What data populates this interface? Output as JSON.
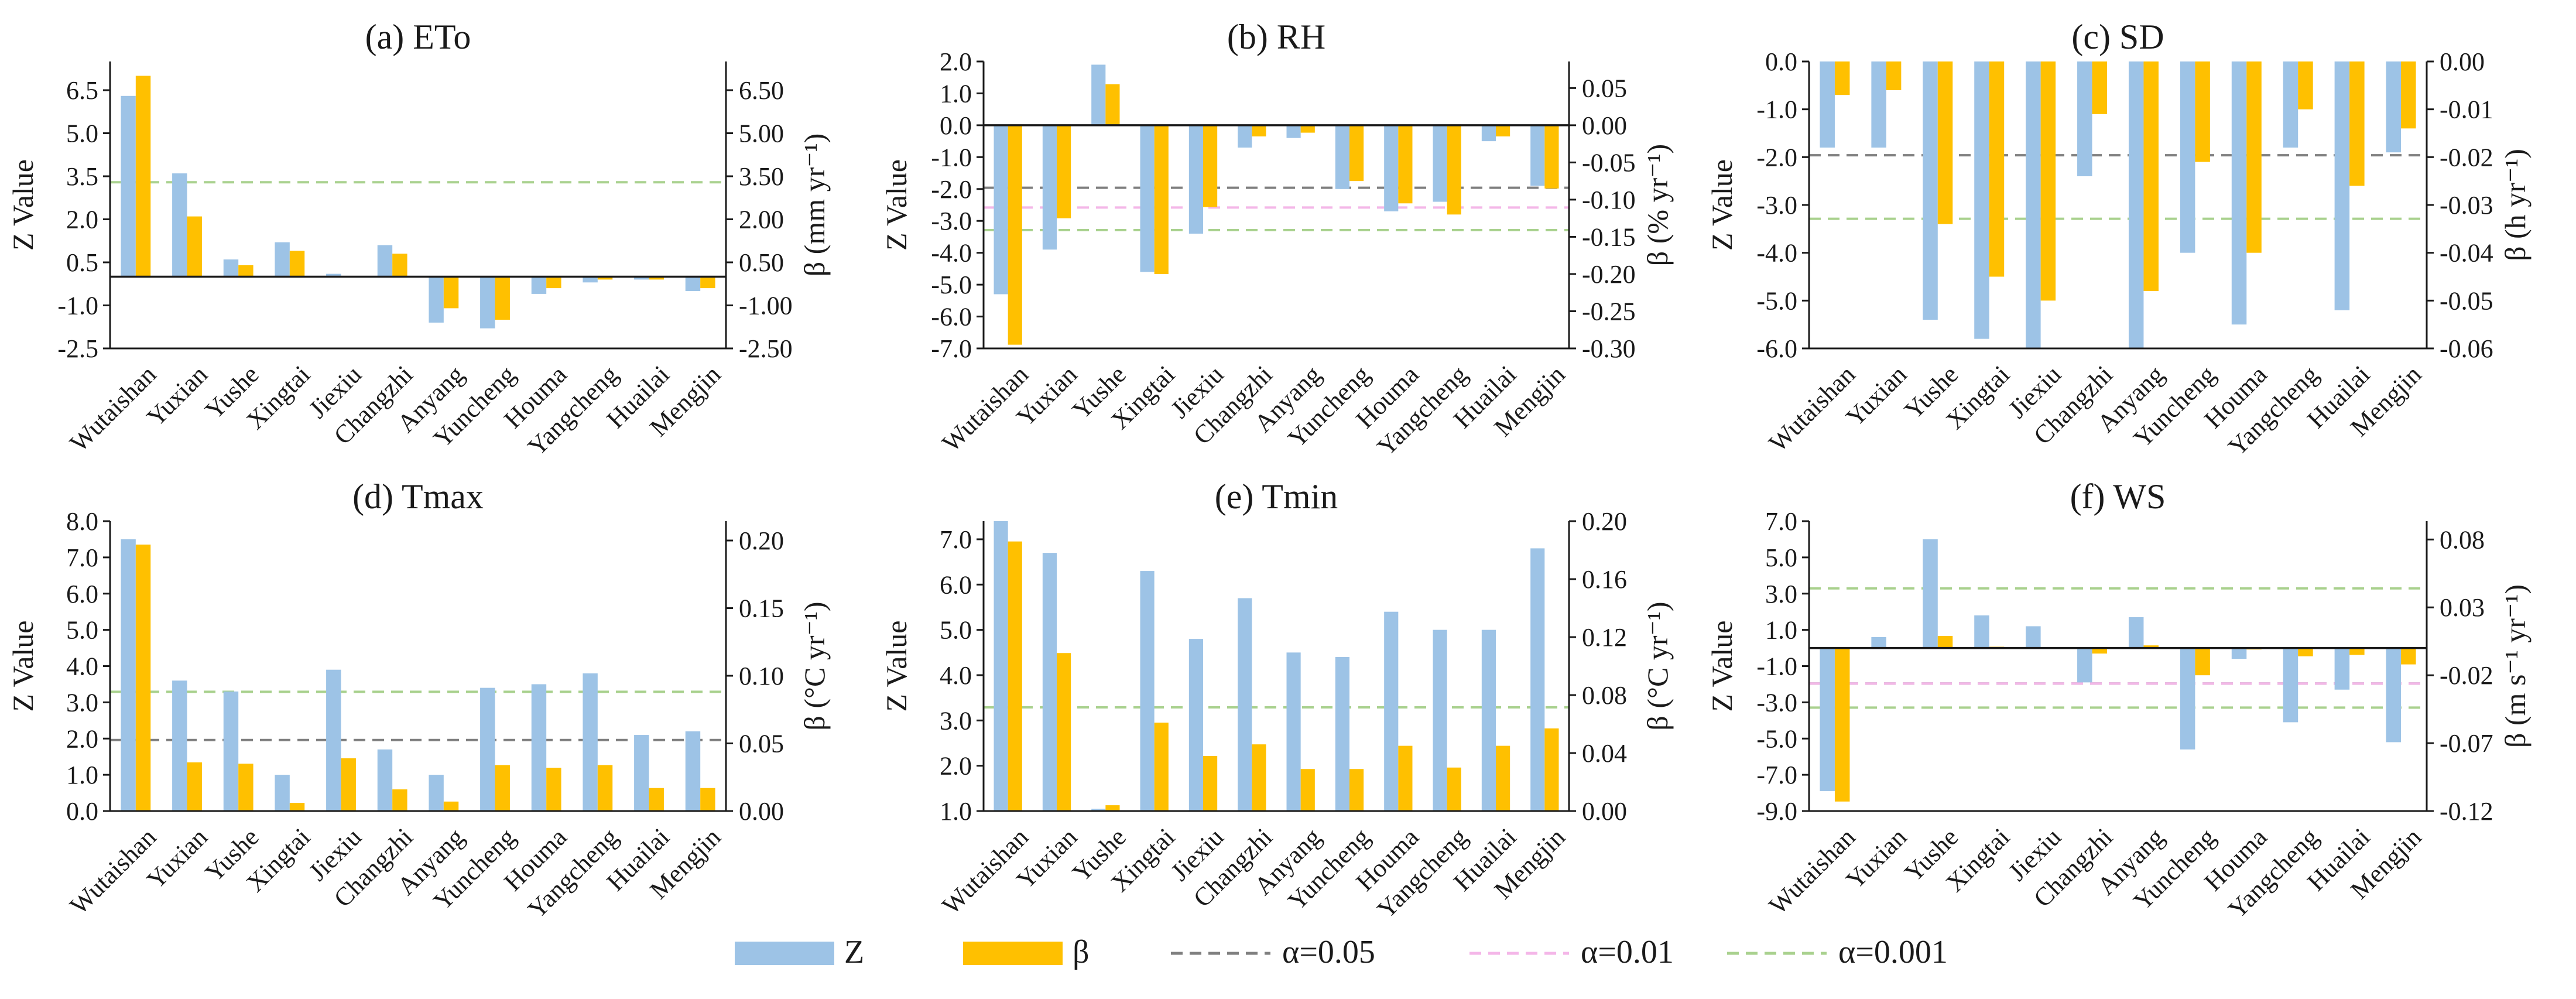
{
  "colors": {
    "z": "#9DC3E6",
    "beta": "#FFC000",
    "a05": "#7F7F7F",
    "a01": "#F4B6E8",
    "a001": "#A9D18E"
  },
  "legend": {
    "z": "Z",
    "beta": "β",
    "a05": "α=0.05",
    "a01": "α=0.01",
    "a001": "α=0.001"
  },
  "chart_data": [
    {
      "type": "bar",
      "title": "(a) ETo",
      "ylabel": "Z Value",
      "y2label": "β (mm yr⁻¹)",
      "categories": [
        "Wutaishan",
        "Yuxian",
        "Yushe",
        "Xingtai",
        "Jiexiu",
        "Changzhi",
        "Anyang",
        "Yuncheng",
        "Houma",
        "Yangcheng",
        "Huailai",
        "Mengjin"
      ],
      "series": [
        {
          "name": "Z",
          "axis": "left",
          "values": [
            6.3,
            3.6,
            0.6,
            1.2,
            0.1,
            1.1,
            -1.6,
            -1.8,
            -0.6,
            -0.2,
            -0.1,
            -0.5
          ]
        },
        {
          "name": "β",
          "axis": "right",
          "values": [
            7.0,
            2.1,
            0.4,
            0.9,
            0.0,
            0.8,
            -1.1,
            -1.5,
            -0.4,
            -0.1,
            -0.1,
            -0.4
          ]
        }
      ],
      "ylim": [
        -2.5,
        7.5
      ],
      "yticks": [
        -2.5,
        -1.0,
        0.5,
        2.0,
        3.5,
        5.0,
        6.5
      ],
      "ytick_labels": [
        "-2.5",
        "-1.0",
        "0.5",
        "2.0",
        "3.5",
        "5.0",
        "6.5"
      ],
      "y2lim": [
        -2.5,
        7.5
      ],
      "y2ticks": [
        -2.5,
        -1.0,
        0.5,
        2.0,
        3.5,
        5.0,
        6.5
      ],
      "y2tick_labels": [
        "-2.50",
        "-1.00",
        "0.50",
        "2.00",
        "3.50",
        "5.00",
        "6.50"
      ],
      "baseline": 0,
      "thresholds": [
        {
          "level": "a001",
          "value": 3.29
        }
      ]
    },
    {
      "type": "bar",
      "title": "(b) RH",
      "ylabel": "Z Value",
      "y2label": "β (% yr⁻¹)",
      "categories": [
        "Wutaishan",
        "Yuxian",
        "Yushe",
        "Xingtai",
        "Jiexiu",
        "Changzhi",
        "Anyang",
        "Yuncheng",
        "Houma",
        "Yangcheng",
        "Huailai",
        "Mengjin"
      ],
      "series": [
        {
          "name": "Z",
          "axis": "left",
          "values": [
            -5.3,
            -3.9,
            1.9,
            -4.6,
            -3.4,
            -0.7,
            -0.4,
            -2.0,
            -2.7,
            -2.4,
            -0.5,
            -1.9
          ]
        },
        {
          "name": "β",
          "axis": "right",
          "values": [
            -0.295,
            -0.125,
            0.055,
            -0.2,
            -0.11,
            -0.015,
            -0.01,
            -0.075,
            -0.105,
            -0.12,
            -0.015,
            -0.085
          ]
        }
      ],
      "ylim": [
        -7.0,
        2.0
      ],
      "yticks": [
        -7.0,
        -6.0,
        -5.0,
        -4.0,
        -3.0,
        -2.0,
        -1.0,
        0.0,
        1.0,
        2.0
      ],
      "ytick_labels": [
        "-7.0",
        "-6.0",
        "-5.0",
        "-4.0",
        "-3.0",
        "-2.0",
        "-1.0",
        "0.0",
        "1.0",
        "2.0"
      ],
      "y2lim": [
        -0.3,
        0.0857
      ],
      "y2ticks": [
        -0.3,
        -0.25,
        -0.2,
        -0.15,
        -0.1,
        -0.05,
        0.0,
        0.05
      ],
      "y2tick_labels": [
        "-0.30",
        "-0.25",
        "-0.20",
        "-0.15",
        "-0.10",
        "-0.05",
        "0.00",
        "0.05"
      ],
      "baseline": 0,
      "thresholds": [
        {
          "level": "a05",
          "value": -1.96
        },
        {
          "level": "a01",
          "value": -2.58
        },
        {
          "level": "a001",
          "value": -3.29
        }
      ]
    },
    {
      "type": "bar",
      "title": "(c) SD",
      "ylabel": "Z Value",
      "y2label": "β (h yr⁻¹)",
      "categories": [
        "Wutaishan",
        "Yuxian",
        "Yushe",
        "Xingtai",
        "Jiexiu",
        "Changzhi",
        "Anyang",
        "Yuncheng",
        "Houma",
        "Yangcheng",
        "Huailai",
        "Mengjin"
      ],
      "series": [
        {
          "name": "Z",
          "axis": "left",
          "values": [
            -1.8,
            -1.8,
            -5.4,
            -5.8,
            -6.0,
            -2.4,
            -6.0,
            -4.0,
            -5.5,
            -1.8,
            -5.2,
            -1.9
          ]
        },
        {
          "name": "β",
          "axis": "right",
          "values": [
            -0.007,
            -0.006,
            -0.034,
            -0.045,
            -0.05,
            -0.011,
            -0.048,
            -0.021,
            -0.04,
            -0.01,
            -0.026,
            -0.014
          ]
        }
      ],
      "ylim": [
        -6.0,
        0.0
      ],
      "yticks": [
        -6.0,
        -5.0,
        -4.0,
        -3.0,
        -2.0,
        -1.0,
        0.0
      ],
      "ytick_labels": [
        "-6.0",
        "-5.0",
        "-4.0",
        "-3.0",
        "-2.0",
        "-1.0",
        "0.0"
      ],
      "y2lim": [
        -0.06,
        0.0
      ],
      "y2ticks": [
        -0.06,
        -0.05,
        -0.04,
        -0.03,
        -0.02,
        -0.01,
        0.0
      ],
      "y2tick_labels": [
        "-0.06",
        "-0.05",
        "-0.04",
        "-0.03",
        "-0.02",
        "-0.01",
        "0.00"
      ],
      "baseline": 0,
      "thresholds": [
        {
          "level": "a05",
          "value": -1.96
        },
        {
          "level": "a001",
          "value": -3.29
        }
      ]
    },
    {
      "type": "bar",
      "title": "(d) Tmax",
      "ylabel": "Z Value",
      "y2label": "β (°C yr⁻¹)",
      "categories": [
        "Wutaishan",
        "Yuxian",
        "Yushe",
        "Xingtai",
        "Jiexiu",
        "Changzhi",
        "Anyang",
        "Yuncheng",
        "Houma",
        "Yangcheng",
        "Huailai",
        "Mengjin"
      ],
      "series": [
        {
          "name": "Z",
          "axis": "left",
          "values": [
            7.5,
            3.6,
            3.3,
            1.0,
            3.9,
            1.7,
            1.0,
            3.4,
            3.5,
            3.8,
            2.1,
            2.2
          ]
        },
        {
          "name": "β",
          "axis": "right",
          "values": [
            0.197,
            0.036,
            0.035,
            0.006,
            0.039,
            0.016,
            0.007,
            0.034,
            0.032,
            0.034,
            0.017,
            0.017
          ]
        }
      ],
      "ylim": [
        0.0,
        8.0
      ],
      "yticks": [
        0.0,
        1.0,
        2.0,
        3.0,
        4.0,
        5.0,
        6.0,
        7.0,
        8.0
      ],
      "ytick_labels": [
        "0.0",
        "1.0",
        "2.0",
        "3.0",
        "4.0",
        "5.0",
        "6.0",
        "7.0",
        "8.0"
      ],
      "y2lim": [
        0.0,
        0.2143
      ],
      "y2ticks": [
        0.0,
        0.05,
        0.1,
        0.15,
        0.2
      ],
      "y2tick_labels": [
        "0.00",
        "0.05",
        "0.10",
        "0.15",
        "0.20"
      ],
      "baseline": 0,
      "thresholds": [
        {
          "level": "a05",
          "value": 1.96
        },
        {
          "level": "a001",
          "value": 3.29
        }
      ]
    },
    {
      "type": "bar",
      "title": "(e) Tmin",
      "ylabel": "Z Value",
      "y2label": "β (°C yr⁻¹)",
      "categories": [
        "Wutaishan",
        "Yuxian",
        "Yushe",
        "Xingtai",
        "Jiexiu",
        "Changzhi",
        "Anyang",
        "Yuncheng",
        "Houma",
        "Yangcheng",
        "Huailai",
        "Mengjin"
      ],
      "series": [
        {
          "name": "Z",
          "axis": "left",
          "values": [
            7.4,
            6.7,
            1.05,
            6.3,
            4.8,
            5.7,
            4.5,
            4.4,
            5.4,
            5.0,
            5.0,
            6.8
          ]
        },
        {
          "name": "β",
          "axis": "right",
          "values": [
            0.186,
            0.109,
            0.004,
            0.061,
            0.038,
            0.046,
            0.029,
            0.029,
            0.045,
            0.03,
            0.045,
            0.057
          ]
        }
      ],
      "ylim": [
        1.0,
        7.4
      ],
      "yticks": [
        1.0,
        2.0,
        3.0,
        4.0,
        5.0,
        6.0,
        7.0
      ],
      "ytick_labels": [
        "1.0",
        "2.0",
        "3.0",
        "4.0",
        "5.0",
        "6.0",
        "7.0"
      ],
      "y2lim": [
        0.0,
        0.2
      ],
      "y2ticks": [
        0.0,
        0.04,
        0.08,
        0.12,
        0.16,
        0.2
      ],
      "y2tick_labels": [
        "0.00",
        "0.04",
        "0.08",
        "0.12",
        "0.16",
        "0.20"
      ],
      "baseline": 1.0,
      "thresholds": [
        {
          "level": "a001",
          "value": 3.29
        }
      ]
    },
    {
      "type": "bar",
      "title": "(f) WS",
      "ylabel": "Z Value",
      "y2label": "β (m s⁻¹ yr⁻¹)",
      "categories": [
        "Wutaishan",
        "Yuxian",
        "Yushe",
        "Xingtai",
        "Jiexiu",
        "Changzhi",
        "Anyang",
        "Yuncheng",
        "Houma",
        "Yangcheng",
        "Huailai",
        "Mengjin"
      ],
      "series": [
        {
          "name": "Z",
          "axis": "left",
          "values": [
            -7.9,
            0.6,
            6.0,
            1.8,
            1.2,
            -1.9,
            1.7,
            -5.6,
            -0.6,
            -4.1,
            -2.3,
            -5.2
          ]
        },
        {
          "name": "β",
          "axis": "right",
          "values": [
            -0.113,
            0.0,
            0.009,
            0.001,
            0.0,
            -0.004,
            0.002,
            -0.02,
            -0.001,
            -0.006,
            -0.005,
            -0.012
          ]
        }
      ],
      "ylim": [
        -9.0,
        7.0
      ],
      "yticks": [
        -9.0,
        -7.0,
        -5.0,
        -3.0,
        -1.0,
        1.0,
        3.0,
        5.0,
        7.0
      ],
      "ytick_labels": [
        "-9.0",
        "-7.0",
        "-5.0",
        "-3.0",
        "-1.0",
        "1.0",
        "3.0",
        "5.0",
        "7.0"
      ],
      "y2lim": [
        -0.12,
        0.0935
      ],
      "y2ticks": [
        -0.12,
        -0.07,
        -0.02,
        0.03,
        0.08
      ],
      "y2tick_labels": [
        "-0.12",
        "-0.07",
        "-0.02",
        "0.03",
        "0.08"
      ],
      "baseline": 0,
      "thresholds": [
        {
          "level": "a05",
          "value": -1.96
        },
        {
          "level": "a01",
          "value": -1.96
        },
        {
          "level": "a001",
          "value": 3.29
        },
        {
          "level": "a001",
          "value": -3.29
        }
      ]
    }
  ]
}
